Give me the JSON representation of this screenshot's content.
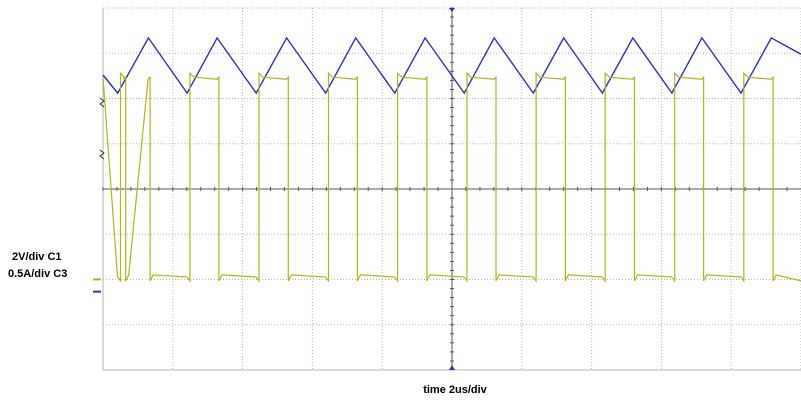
{
  "chart_data": {
    "type": "line",
    "title": "",
    "xlabel": "time 2us/div",
    "volts_per_div_label": "2V/div",
    "amps_per_div_label": "0.5A/div",
    "time_per_div_us": 2,
    "grid": true,
    "grid_divisions": {
      "x": 10,
      "y": 8
    },
    "colors": {
      "ch1": "#b5b31a",
      "ch3": "#2d2db8",
      "grid": "#b4b4b4",
      "axis": "#555555"
    },
    "series": [
      {
        "name": "C1",
        "channel_label": "C1",
        "unit": "V",
        "ground_div": -2.13,
        "note": "switch-node voltage, rectangular pulses",
        "period_us": 1.95,
        "pulse_high_start_us": [
          0.42,
          2.41,
          4.39,
          6.38,
          8.36,
          10.35,
          12.33,
          14.31,
          16.3,
          18.28
        ],
        "pulse_high_end_us": [
          1.3,
          3.27,
          5.26,
          7.24,
          9.23,
          11.21,
          13.2,
          15.18,
          17.16,
          19.15
        ],
        "high_level_v": 9.2,
        "low_level_v": 0.2
      },
      {
        "name": "C3",
        "channel_label": "C3",
        "unit": "A",
        "ground_div": -2.18,
        "note": "inductor current, triangular ripple",
        "peaks": {
          "x_us": [
            -0.65,
            1.3,
            3.27,
            5.26,
            7.24,
            9.23,
            11.21,
            13.2,
            15.18,
            17.16,
            19.15
          ],
          "y_a": [
            2.76,
            2.76,
            2.76,
            2.76,
            2.76,
            2.76,
            2.76,
            2.76,
            2.76,
            2.76,
            2.76
          ]
        },
        "valleys": {
          "x_us": [
            0.42,
            2.41,
            4.39,
            6.38,
            8.36,
            10.35,
            12.33,
            14.31,
            16.3,
            18.28
          ],
          "y_a": [
            2.15,
            2.15,
            2.15,
            2.15,
            2.15,
            2.15,
            2.15,
            2.15,
            2.15,
            2.15
          ]
        },
        "start": {
          "x_us": 0,
          "y_a": 2.35
        },
        "end": {
          "x_us": 20,
          "y_a": 2.58
        }
      }
    ]
  }
}
